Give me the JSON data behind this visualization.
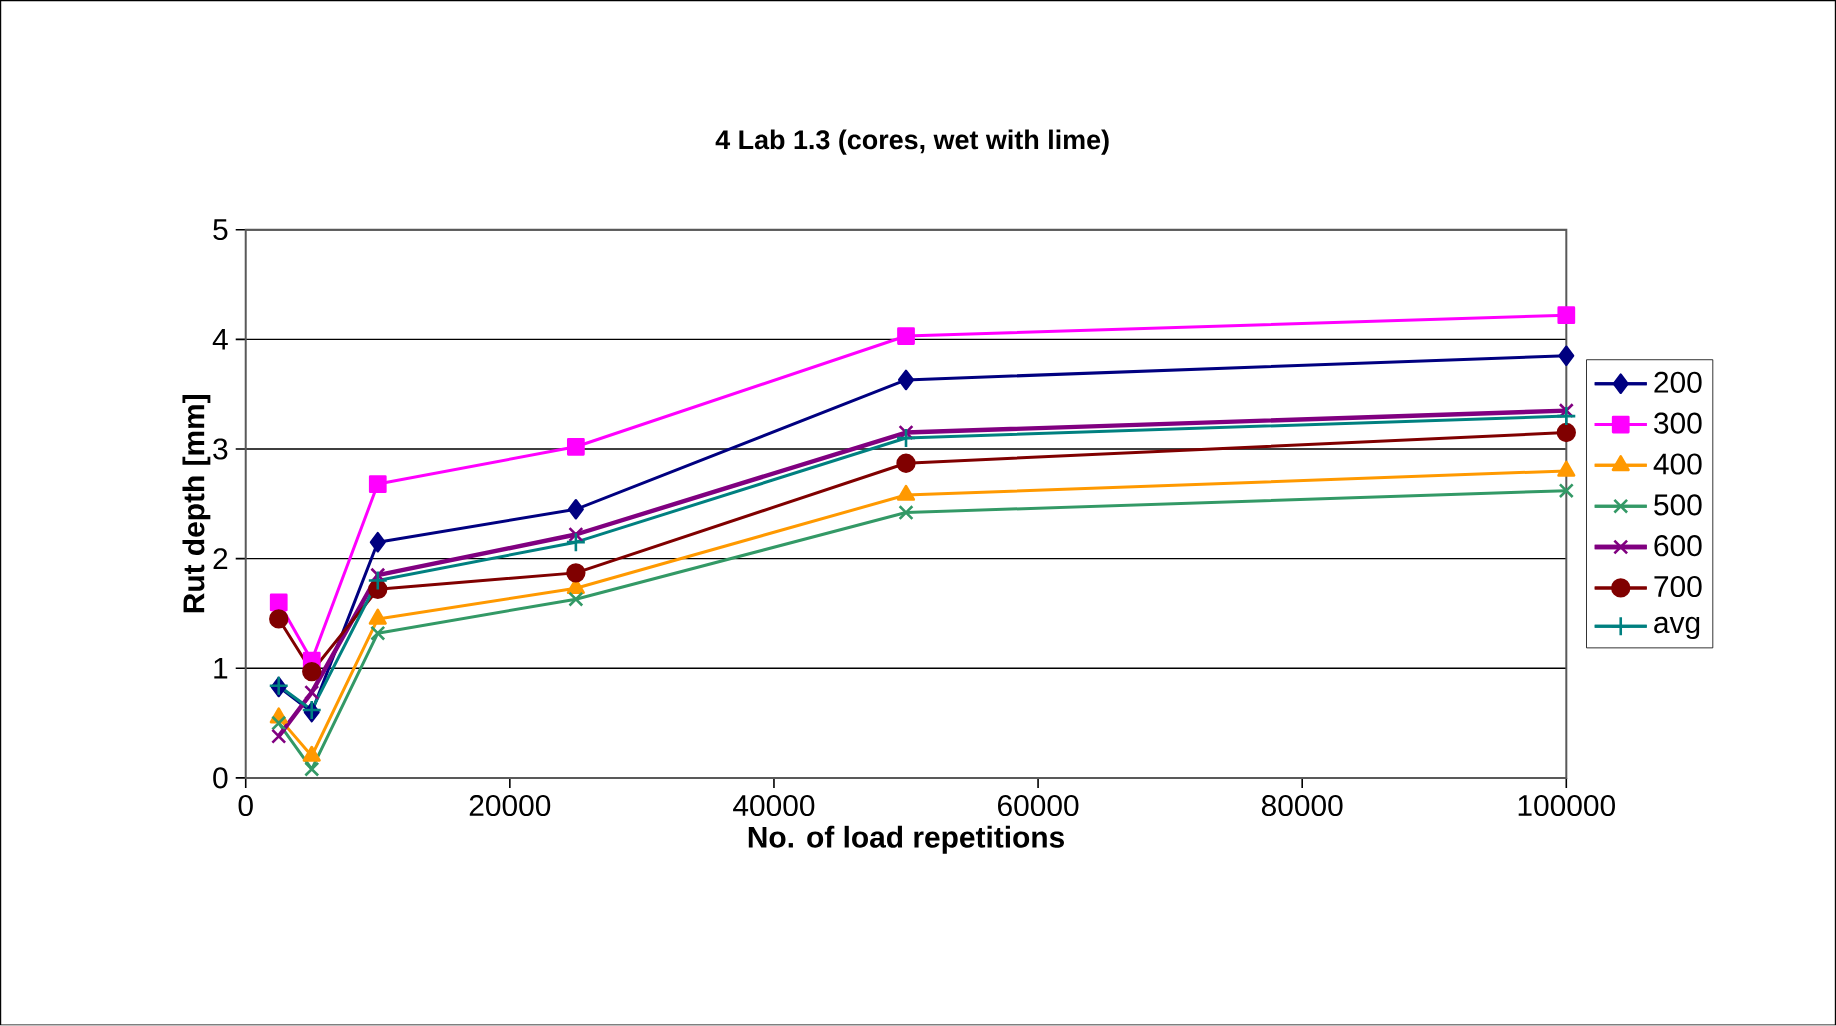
{
  "chart_data": {
    "type": "line",
    "title": "4 Lab 1.3 (cores, wet with lime)",
    "xlabel": "No. of load repetitions",
    "ylabel": "Rut depth [mm]",
    "x": [
      2500,
      5000,
      10000,
      25000,
      50000,
      100000
    ],
    "series": [
      {
        "name": "200",
        "color": "#000080",
        "marker": "diamond",
        "values": [
          0.83,
          0.6,
          2.15,
          2.45,
          3.63,
          3.85
        ]
      },
      {
        "name": "300",
        "color": "#ff00ff",
        "marker": "square",
        "values": [
          1.6,
          1.07,
          2.68,
          3.02,
          4.03,
          4.22
        ]
      },
      {
        "name": "400",
        "color": "#ff9900",
        "marker": "triangle",
        "values": [
          0.55,
          0.2,
          1.45,
          1.73,
          2.58,
          2.8
        ]
      },
      {
        "name": "500",
        "color": "#339966",
        "marker": "cross",
        "values": [
          0.5,
          0.08,
          1.32,
          1.63,
          2.42,
          2.62
        ]
      },
      {
        "name": "600",
        "color": "#800080",
        "marker": "cross",
        "values": [
          0.38,
          0.78,
          1.85,
          2.22,
          3.15,
          3.35
        ]
      },
      {
        "name": "700",
        "color": "#800000",
        "marker": "circle",
        "values": [
          1.45,
          0.97,
          1.72,
          1.87,
          2.87,
          3.15
        ]
      },
      {
        "name": "avg",
        "color": "#008080",
        "marker": "plus",
        "values": [
          0.84,
          0.62,
          1.8,
          2.15,
          3.1,
          3.3
        ]
      }
    ],
    "xlim": [
      0,
      100000
    ],
    "xticks": [
      0,
      20000,
      40000,
      60000,
      80000,
      100000
    ],
    "ylim": [
      0,
      5
    ],
    "yticks": [
      0,
      1,
      2,
      3,
      4,
      5
    ],
    "grid": "y",
    "legend": "right",
    "line_style": "solid"
  }
}
